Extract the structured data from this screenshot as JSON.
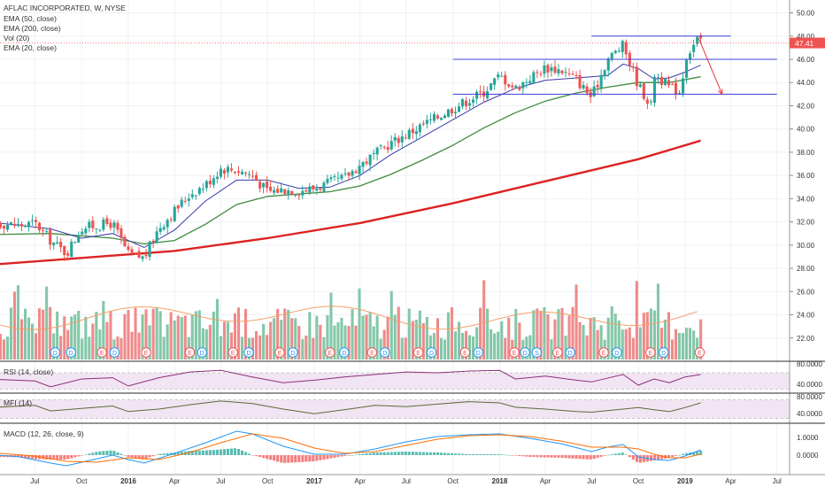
{
  "colors": {
    "up": "#26a69a",
    "down": "#ef5350",
    "vol_up": "#83c7a9",
    "vol_down": "#ef8a8a",
    "ema20": "#3a3aa8",
    "ema50": "#3e8b3e",
    "ema200": "#dd2222",
    "vol_ma": "#f3a06b",
    "rsi": "#8e2f7a",
    "rsi_band": "#f1e4f3",
    "mfi": "#5b6b39",
    "mfi_band": "#f1e4f3",
    "macd_line": "#2196f3",
    "signal_line": "#ff6d00",
    "hist_up": "#26a69a",
    "hist_down": "#ef5350",
    "price_label_bg": "#ef5350",
    "channel": "#3f3fd8",
    "arrow": "#e53935"
  },
  "legend": {
    "title": "AFLAC INCORPORATED, W, NYSE",
    "items": [
      "EMA (50, close)",
      "EMA (200, close)",
      "Vol (20)",
      "EMA (20, close)"
    ]
  },
  "panels": {
    "rsi_title": "RSI (14, close)",
    "mfi_title": "MFI (14)",
    "macd_title": "MACD (12, 26, close, 9)"
  },
  "chart_data": {
    "type": "candlestick",
    "title": "AFLAC INCORPORATED, W, NYSE",
    "last_price_label": "47.41",
    "y_axis": {
      "range": [
        20,
        50.5
      ],
      "ticks": [
        "50.00",
        "48.00",
        "46.00",
        "44.00",
        "42.00",
        "40.00",
        "38.00",
        "36.00",
        "34.00",
        "32.00",
        "30.00",
        "28.00",
        "26.00",
        "24.00",
        "22.00"
      ]
    },
    "x_axis": {
      "tick_labels": [
        "Jul",
        "Oct",
        "2016",
        "Apr",
        "Jul",
        "Oct",
        "2017",
        "Apr",
        "Jul",
        "Oct",
        "2018",
        "Apr",
        "Jul",
        "Oct",
        "2019",
        "Apr",
        "Jul"
      ]
    },
    "price_path": [
      {
        "date": "2015-04",
        "close": 32.0
      },
      {
        "date": "2015-06",
        "close": 31.7
      },
      {
        "date": "2015-07",
        "close": 31.9
      },
      {
        "date": "2015-08",
        "close": 30.4
      },
      {
        "date": "2015-09",
        "close": 29.3
      },
      {
        "date": "2015-10",
        "close": 31.5
      },
      {
        "date": "2015-12",
        "close": 31.9
      },
      {
        "date": "2016-01",
        "close": 29.2
      },
      {
        "date": "2016-02",
        "close": 28.9
      },
      {
        "date": "2016-03",
        "close": 31.5
      },
      {
        "date": "2016-05",
        "close": 34.4
      },
      {
        "date": "2016-06",
        "close": 35.2
      },
      {
        "date": "2016-07",
        "close": 36.6
      },
      {
        "date": "2016-08",
        "close": 36.5
      },
      {
        "date": "2016-09",
        "close": 36.0
      },
      {
        "date": "2016-10",
        "close": 34.6
      },
      {
        "date": "2016-11",
        "close": 34.8
      },
      {
        "date": "2016-12",
        "close": 34.7
      },
      {
        "date": "2017-01",
        "close": 34.9
      },
      {
        "date": "2017-03",
        "close": 35.8
      },
      {
        "date": "2017-04",
        "close": 36.9
      },
      {
        "date": "2017-06",
        "close": 38.8
      },
      {
        "date": "2017-08",
        "close": 40.3
      },
      {
        "date": "2017-10",
        "close": 41.8
      },
      {
        "date": "2017-12",
        "close": 43.2
      },
      {
        "date": "2018-01",
        "close": 44.6
      },
      {
        "date": "2018-02",
        "close": 43.5
      },
      {
        "date": "2018-03",
        "close": 44.4
      },
      {
        "date": "2018-04",
        "close": 45.3
      },
      {
        "date": "2018-05",
        "close": 45.1
      },
      {
        "date": "2018-06",
        "close": 44.3
      },
      {
        "date": "2018-07",
        "close": 42.7
      },
      {
        "date": "2018-08",
        "close": 46.0
      },
      {
        "date": "2018-09",
        "close": 47.2
      },
      {
        "date": "2018-10",
        "close": 43.8
      },
      {
        "date": "2018-10-26",
        "close": 42.0
      },
      {
        "date": "2018-11",
        "close": 44.8
      },
      {
        "date": "2018-12",
        "close": 43.6
      },
      {
        "date": "2018-12-24",
        "close": 43.2
      },
      {
        "date": "2019-01",
        "close": 46.1
      },
      {
        "date": "2019-01-25",
        "close": 47.7
      },
      {
        "date": "2019-02-01",
        "close": 47.41
      }
    ],
    "ema20": [
      {
        "date": "2015-04",
        "value": 32.0
      },
      {
        "date": "2015-08",
        "value": 31.4
      },
      {
        "date": "2015-10",
        "value": 30.6
      },
      {
        "date": "2015-12",
        "value": 31.0
      },
      {
        "date": "2016-02",
        "value": 29.8
      },
      {
        "date": "2016-04",
        "value": 31.3
      },
      {
        "date": "2016-06",
        "value": 33.8
      },
      {
        "date": "2016-08",
        "value": 35.6
      },
      {
        "date": "2016-10",
        "value": 35.6
      },
      {
        "date": "2016-12",
        "value": 34.9
      },
      {
        "date": "2017-02",
        "value": 35.0
      },
      {
        "date": "2017-04",
        "value": 36.0
      },
      {
        "date": "2017-06",
        "value": 37.8
      },
      {
        "date": "2017-08",
        "value": 39.3
      },
      {
        "date": "2017-10",
        "value": 40.8
      },
      {
        "date": "2017-12",
        "value": 42.3
      },
      {
        "date": "2018-02",
        "value": 43.5
      },
      {
        "date": "2018-04",
        "value": 44.2
      },
      {
        "date": "2018-06",
        "value": 44.4
      },
      {
        "date": "2018-08",
        "value": 44.6
      },
      {
        "date": "2018-09",
        "value": 45.6
      },
      {
        "date": "2018-10",
        "value": 45.2
      },
      {
        "date": "2018-11",
        "value": 44.3
      },
      {
        "date": "2018-12",
        "value": 44.4
      },
      {
        "date": "2019-01",
        "value": 44.9
      },
      {
        "date": "2019-02-01",
        "value": 45.5
      }
    ],
    "ema50": [
      {
        "date": "2015-04",
        "value": 30.9
      },
      {
        "date": "2015-08",
        "value": 31.0
      },
      {
        "date": "2015-12",
        "value": 30.6
      },
      {
        "date": "2016-02",
        "value": 30.1
      },
      {
        "date": "2016-04",
        "value": 30.4
      },
      {
        "date": "2016-06",
        "value": 31.8
      },
      {
        "date": "2016-08",
        "value": 33.5
      },
      {
        "date": "2016-10",
        "value": 34.2
      },
      {
        "date": "2016-12",
        "value": 34.4
      },
      {
        "date": "2017-02",
        "value": 34.6
      },
      {
        "date": "2017-04",
        "value": 35.1
      },
      {
        "date": "2017-06",
        "value": 36.1
      },
      {
        "date": "2017-08",
        "value": 37.3
      },
      {
        "date": "2017-10",
        "value": 38.6
      },
      {
        "date": "2017-12",
        "value": 40.1
      },
      {
        "date": "2018-02",
        "value": 41.4
      },
      {
        "date": "2018-04",
        "value": 42.4
      },
      {
        "date": "2018-06",
        "value": 43.1
      },
      {
        "date": "2018-08",
        "value": 43.6
      },
      {
        "date": "2018-10",
        "value": 44.0
      },
      {
        "date": "2018-12",
        "value": 44.0
      },
      {
        "date": "2019-02-01",
        "value": 44.5
      }
    ],
    "ema200": [
      {
        "date": "2015-04",
        "value": 28.3
      },
      {
        "date": "2015-10",
        "value": 28.9
      },
      {
        "date": "2016-04",
        "value": 29.5
      },
      {
        "date": "2016-10",
        "value": 30.6
      },
      {
        "date": "2017-04",
        "value": 31.9
      },
      {
        "date": "2017-10",
        "value": 33.6
      },
      {
        "date": "2018-04",
        "value": 35.5
      },
      {
        "date": "2018-10",
        "value": 37.4
      },
      {
        "date": "2019-02-01",
        "value": 39.0
      }
    ],
    "channel_lines": [
      {
        "price": 48.0,
        "from": "2018-07",
        "to": "2019-04"
      },
      {
        "price": 46.0,
        "from": "2017-10",
        "to": "2019-07"
      },
      {
        "price": 43.0,
        "from": "2017-10",
        "to": "2019-07"
      }
    ],
    "projection_arrow": {
      "from": {
        "date": "2019-01-28",
        "price": 47.8
      },
      "to": {
        "date": "2019-03-15",
        "price": 43.0
      }
    },
    "volume_ma_label": "Vol (20)",
    "event_markers": [
      {
        "date": "2015-04-10",
        "label": "D"
      },
      {
        "date": "2015-08-10",
        "label": "D"
      },
      {
        "date": "2015-09-10",
        "label": "D"
      },
      {
        "date": "2015-11-10",
        "label": "E"
      },
      {
        "date": "2015-12-05",
        "label": "D"
      },
      {
        "date": "2016-02-05",
        "label": "E"
      },
      {
        "date": "2016-05-01",
        "label": "E"
      },
      {
        "date": "2016-05-25",
        "label": "D"
      },
      {
        "date": "2016-07-25",
        "label": "E"
      },
      {
        "date": "2016-08-25",
        "label": "D"
      },
      {
        "date": "2016-10-25",
        "label": "E"
      },
      {
        "date": "2016-11-20",
        "label": "D"
      },
      {
        "date": "2017-02-01",
        "label": "E"
      },
      {
        "date": "2017-03-01",
        "label": "D"
      },
      {
        "date": "2017-04-25",
        "label": "E"
      },
      {
        "date": "2017-05-20",
        "label": "D"
      },
      {
        "date": "2017-07-25",
        "label": "E"
      },
      {
        "date": "2017-08-20",
        "label": "D"
      },
      {
        "date": "2017-10-25",
        "label": "E"
      },
      {
        "date": "2017-11-20",
        "label": "D"
      },
      {
        "date": "2018-01-30",
        "label": "E"
      },
      {
        "date": "2018-02-20",
        "label": "D"
      },
      {
        "date": "2018-03-15",
        "label": "S"
      },
      {
        "date": "2018-04-25",
        "label": "E"
      },
      {
        "date": "2018-05-20",
        "label": "D"
      },
      {
        "date": "2018-07-25",
        "label": "E"
      },
      {
        "date": "2018-08-20",
        "label": "D"
      },
      {
        "date": "2018-10-25",
        "label": "E"
      },
      {
        "date": "2018-11-20",
        "label": "D"
      },
      {
        "date": "2019-01-30",
        "label": "E"
      }
    ],
    "rsi": {
      "title": "RSI (14, close)",
      "axis_labels": [
        "80.0000",
        "40.0000"
      ],
      "band": [
        30,
        70
      ],
      "range": [
        25,
        85
      ],
      "points": [
        {
          "date": "2015-04",
          "value": 55
        },
        {
          "date": "2015-07",
          "value": 50
        },
        {
          "date": "2015-08",
          "value": 36
        },
        {
          "date": "2015-10",
          "value": 55
        },
        {
          "date": "2015-12",
          "value": 58
        },
        {
          "date": "2016-01",
          "value": 38
        },
        {
          "date": "2016-03",
          "value": 58
        },
        {
          "date": "2016-05",
          "value": 72
        },
        {
          "date": "2016-07",
          "value": 76
        },
        {
          "date": "2016-09",
          "value": 60
        },
        {
          "date": "2016-11",
          "value": 46
        },
        {
          "date": "2017-01",
          "value": 52
        },
        {
          "date": "2017-03",
          "value": 60
        },
        {
          "date": "2017-05",
          "value": 66
        },
        {
          "date": "2017-07",
          "value": 72
        },
        {
          "date": "2017-09",
          "value": 70
        },
        {
          "date": "2017-11",
          "value": 74
        },
        {
          "date": "2018-01",
          "value": 76
        },
        {
          "date": "2018-02",
          "value": 55
        },
        {
          "date": "2018-04",
          "value": 62
        },
        {
          "date": "2018-06",
          "value": 52
        },
        {
          "date": "2018-07",
          "value": 48
        },
        {
          "date": "2018-09",
          "value": 66
        },
        {
          "date": "2018-10",
          "value": 40
        },
        {
          "date": "2018-11",
          "value": 55
        },
        {
          "date": "2018-12",
          "value": 46
        },
        {
          "date": "2019-01",
          "value": 60
        },
        {
          "date": "2019-02-01",
          "value": 66
        }
      ]
    },
    "mfi": {
      "title": "MFI (14)",
      "axis_labels": [
        "80.0000",
        "40.0000"
      ],
      "band": [
        20,
        80
      ],
      "range": [
        10,
        90
      ],
      "points": [
        {
          "date": "2015-04",
          "value": 55
        },
        {
          "date": "2015-07",
          "value": 62
        },
        {
          "date": "2015-08",
          "value": 44
        },
        {
          "date": "2015-10",
          "value": 52
        },
        {
          "date": "2015-12",
          "value": 60
        },
        {
          "date": "2016-01",
          "value": 42
        },
        {
          "date": "2016-03",
          "value": 50
        },
        {
          "date": "2016-05",
          "value": 64
        },
        {
          "date": "2016-07",
          "value": 76
        },
        {
          "date": "2016-09",
          "value": 68
        },
        {
          "date": "2016-11",
          "value": 50
        },
        {
          "date": "2017-01",
          "value": 35
        },
        {
          "date": "2017-03",
          "value": 48
        },
        {
          "date": "2017-05",
          "value": 62
        },
        {
          "date": "2017-07",
          "value": 58
        },
        {
          "date": "2017-09",
          "value": 66
        },
        {
          "date": "2017-11",
          "value": 74
        },
        {
          "date": "2018-01",
          "value": 70
        },
        {
          "date": "2018-02",
          "value": 56
        },
        {
          "date": "2018-04",
          "value": 50
        },
        {
          "date": "2018-06",
          "value": 42
        },
        {
          "date": "2018-07",
          "value": 40
        },
        {
          "date": "2018-09",
          "value": 50
        },
        {
          "date": "2018-10",
          "value": 55
        },
        {
          "date": "2018-11",
          "value": 48
        },
        {
          "date": "2018-12",
          "value": 42
        },
        {
          "date": "2019-01",
          "value": 55
        },
        {
          "date": "2019-02-01",
          "value": 70
        }
      ]
    },
    "macd": {
      "title": "MACD (12, 26, close, 9)",
      "axis_labels": [
        "1.0000",
        "0.0000"
      ],
      "range": [
        -1.0,
        1.6
      ],
      "macd_line": [
        {
          "date": "2015-04",
          "value": 0.05
        },
        {
          "date": "2015-06",
          "value": -0.1
        },
        {
          "date": "2015-08",
          "value": -0.45
        },
        {
          "date": "2015-09",
          "value": -0.6
        },
        {
          "date": "2015-11",
          "value": -0.2
        },
        {
          "date": "2015-12",
          "value": 0.0
        },
        {
          "date": "2016-01",
          "value": -0.25
        },
        {
          "date": "2016-02",
          "value": -0.45
        },
        {
          "date": "2016-04",
          "value": 0.1
        },
        {
          "date": "2016-06",
          "value": 0.7
        },
        {
          "date": "2016-08",
          "value": 1.35
        },
        {
          "date": "2016-09",
          "value": 1.2
        },
        {
          "date": "2016-11",
          "value": 0.5
        },
        {
          "date": "2017-01",
          "value": 0.05
        },
        {
          "date": "2017-03",
          "value": 0.05
        },
        {
          "date": "2017-05",
          "value": 0.35
        },
        {
          "date": "2017-07",
          "value": 0.75
        },
        {
          "date": "2017-09",
          "value": 1.05
        },
        {
          "date": "2017-11",
          "value": 1.15
        },
        {
          "date": "2018-01",
          "value": 1.2
        },
        {
          "date": "2018-03",
          "value": 0.95
        },
        {
          "date": "2018-05",
          "value": 0.65
        },
        {
          "date": "2018-07",
          "value": 0.2
        },
        {
          "date": "2018-08",
          "value": 0.45
        },
        {
          "date": "2018-09",
          "value": 0.6
        },
        {
          "date": "2018-10",
          "value": -0.1
        },
        {
          "date": "2018-11",
          "value": -0.25
        },
        {
          "date": "2018-12",
          "value": -0.3
        },
        {
          "date": "2019-01",
          "value": -0.05
        },
        {
          "date": "2019-02-01",
          "value": 0.3
        }
      ],
      "signal_line": [
        {
          "date": "2015-04",
          "value": 0.15
        },
        {
          "date": "2015-07",
          "value": -0.05
        },
        {
          "date": "2015-09",
          "value": -0.35
        },
        {
          "date": "2015-11",
          "value": -0.4
        },
        {
          "date": "2016-01",
          "value": -0.15
        },
        {
          "date": "2016-03",
          "value": -0.25
        },
        {
          "date": "2016-05",
          "value": 0.15
        },
        {
          "date": "2016-07",
          "value": 0.7
        },
        {
          "date": "2016-09",
          "value": 1.2
        },
        {
          "date": "2016-11",
          "value": 0.95
        },
        {
          "date": "2017-01",
          "value": 0.4
        },
        {
          "date": "2017-03",
          "value": 0.1
        },
        {
          "date": "2017-05",
          "value": 0.2
        },
        {
          "date": "2017-07",
          "value": 0.55
        },
        {
          "date": "2017-09",
          "value": 0.9
        },
        {
          "date": "2017-11",
          "value": 1.1
        },
        {
          "date": "2018-01",
          "value": 1.15
        },
        {
          "date": "2018-03",
          "value": 1.05
        },
        {
          "date": "2018-05",
          "value": 0.8
        },
        {
          "date": "2018-07",
          "value": 0.45
        },
        {
          "date": "2018-09",
          "value": 0.45
        },
        {
          "date": "2018-10",
          "value": 0.35
        },
        {
          "date": "2018-11",
          "value": 0.05
        },
        {
          "date": "2018-12",
          "value": -0.15
        },
        {
          "date": "2019-01",
          "value": -0.15
        },
        {
          "date": "2019-02-01",
          "value": 0.05
        }
      ]
    }
  }
}
